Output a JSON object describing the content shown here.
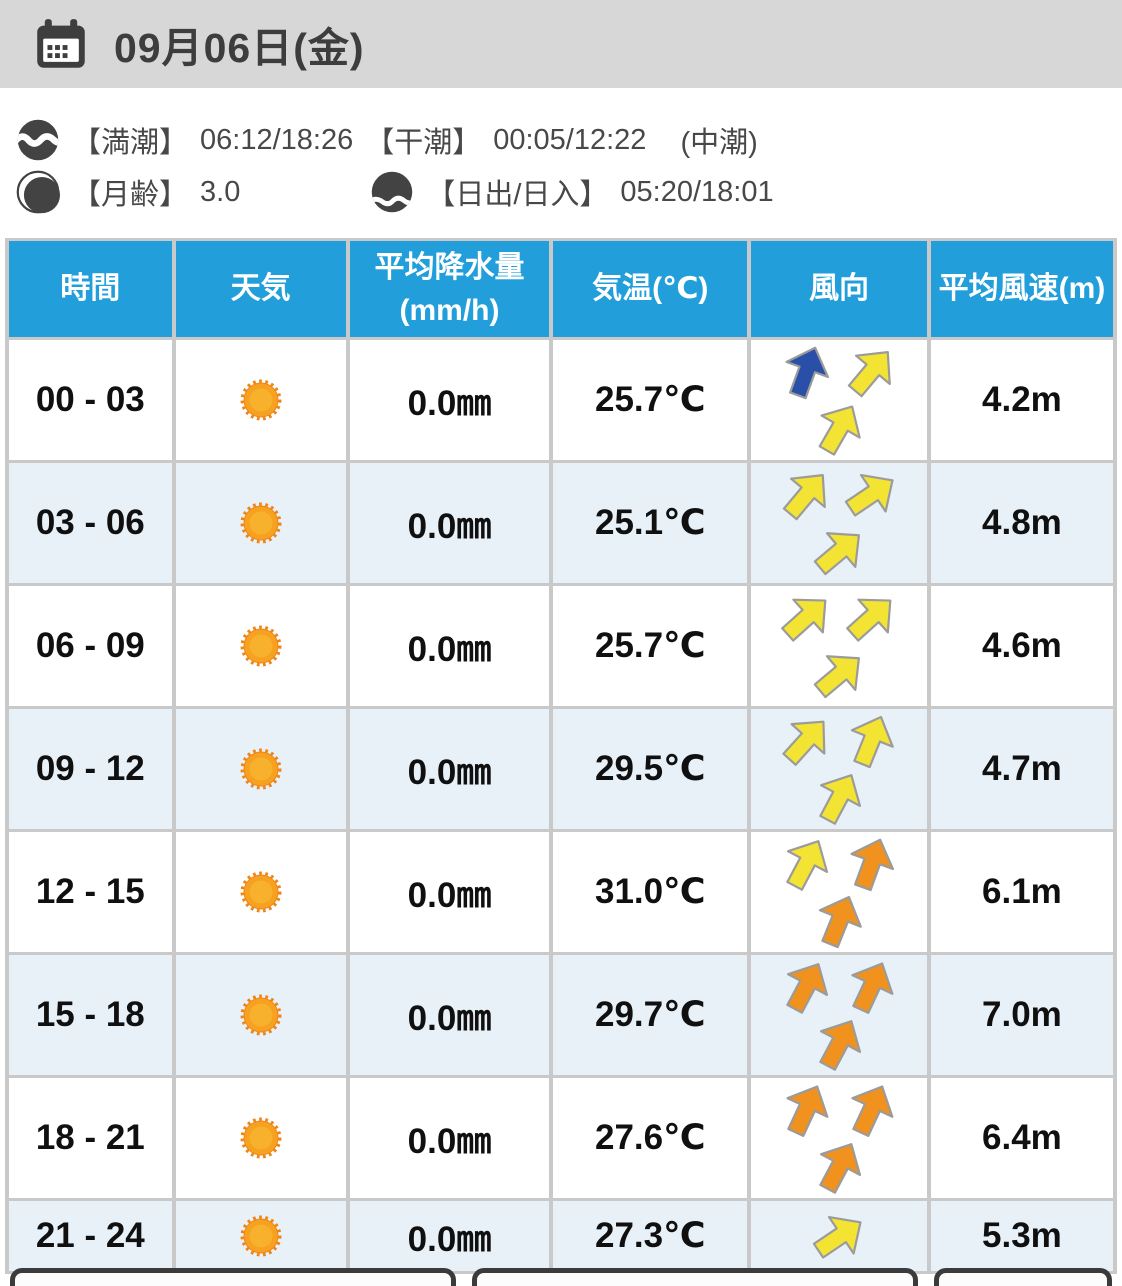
{
  "page": {
    "date_header": "09月06日(金)"
  },
  "almanac": {
    "high_tide_label": "【満潮】",
    "high_tide_times": "06:12/18:26",
    "low_tide_label": "【干潮】",
    "low_tide_times": "00:05/12:22",
    "tide_phase": "(中潮)",
    "moon_label": "【月齢】",
    "moon_age": "3.0",
    "sunrise_label": "【日出/日入】",
    "sunrise_sunset_times": "05:20/18:01"
  },
  "table": {
    "headers": {
      "time": "時間",
      "weather": "天気",
      "precip_line1": "平均降水量",
      "precip_line2": "(mm/h)",
      "temp": "気温(℃)",
      "wind_dir": "風向",
      "wind_speed": "平均風速(m)"
    },
    "rows": [
      {
        "time": "00 - 03",
        "weather_icon": "sunny",
        "precip": "0.0㎜",
        "temp": "25.7℃",
        "wind_speed": "4.2m",
        "wind_arrows": [
          {
            "color": "blue",
            "rotation": 20
          },
          {
            "color": "yellow",
            "rotation": 40
          },
          {
            "color": "yellow",
            "rotation": 30
          }
        ]
      },
      {
        "time": "03 - 06",
        "weather_icon": "sunny",
        "precip": "0.0㎜",
        "temp": "25.1℃",
        "wind_speed": "4.8m",
        "wind_arrows": [
          {
            "color": "yellow",
            "rotation": 40
          },
          {
            "color": "yellow",
            "rotation": 56
          },
          {
            "color": "yellow",
            "rotation": 50
          }
        ]
      },
      {
        "time": "06 - 09",
        "weather_icon": "sunny",
        "precip": "0.0㎜",
        "temp": "25.7℃",
        "wind_speed": "4.6m",
        "wind_arrows": [
          {
            "color": "yellow",
            "rotation": 48
          },
          {
            "color": "yellow",
            "rotation": 48
          },
          {
            "color": "yellow",
            "rotation": 50
          }
        ]
      },
      {
        "time": "09 - 12",
        "weather_icon": "sunny",
        "precip": "0.0㎜",
        "temp": "29.5℃",
        "wind_speed": "4.7m",
        "wind_arrows": [
          {
            "color": "yellow",
            "rotation": 42
          },
          {
            "color": "yellow",
            "rotation": 22
          },
          {
            "color": "yellow",
            "rotation": 28
          }
        ]
      },
      {
        "time": "12 - 15",
        "weather_icon": "sunny",
        "precip": "0.0㎜",
        "temp": "31.0℃",
        "wind_speed": "6.1m",
        "wind_arrows": [
          {
            "color": "yellow",
            "rotation": 28
          },
          {
            "color": "orange",
            "rotation": 20
          },
          {
            "color": "orange",
            "rotation": 22
          }
        ]
      },
      {
        "time": "15 - 18",
        "weather_icon": "sunny",
        "precip": "0.0㎜",
        "temp": "29.7℃",
        "wind_speed": "7.0m",
        "wind_arrows": [
          {
            "color": "orange",
            "rotation": 28
          },
          {
            "color": "orange",
            "rotation": 25
          },
          {
            "color": "orange",
            "rotation": 28
          }
        ]
      },
      {
        "time": "18 - 21",
        "weather_icon": "sunny",
        "precip": "0.0㎜",
        "temp": "27.6℃",
        "wind_speed": "6.4m",
        "wind_arrows": [
          {
            "color": "orange",
            "rotation": 25
          },
          {
            "color": "orange",
            "rotation": 25
          },
          {
            "color": "orange",
            "rotation": 28
          }
        ]
      },
      {
        "time": "21 - 24",
        "weather_icon": "sunny",
        "precip": "0.0㎜",
        "temp": "27.3℃",
        "wind_speed": "5.3m",
        "wind_arrows": [
          {
            "color": "yellow",
            "rotation": 56
          }
        ]
      }
    ]
  },
  "colors": {
    "table_header_bg": "#229fdb",
    "row_alt_bg": "#e8f1f8",
    "arrow_yellow": "#f3e434",
    "arrow_orange": "#f0921d",
    "arrow_blue": "#2a4fa8",
    "sun_core": "#f6a11f",
    "sun_rays": "#ef8418"
  }
}
